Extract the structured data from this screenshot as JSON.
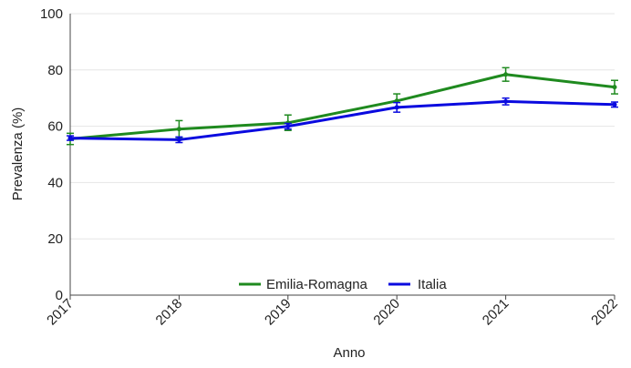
{
  "chart_data": {
    "type": "line",
    "xlabel": "Anno",
    "ylabel": "Prevalenza (%)",
    "categories": [
      "2017",
      "2018",
      "2019",
      "2020",
      "2021",
      "2022"
    ],
    "ylim": [
      0,
      100
    ],
    "yticks": [
      "0",
      "20",
      "40",
      "60",
      "80",
      "100"
    ],
    "grid": "horizontal",
    "legend_position": "bottom-center",
    "series": [
      {
        "name": "Emilia-Romagna",
        "color": "#1f8a1f",
        "values": [
          55.5,
          59.0,
          61.2,
          69.0,
          78.4,
          73.9
        ],
        "error_low": [
          53.5,
          56.0,
          58.5,
          66.5,
          76.0,
          71.5
        ],
        "error_high": [
          57.5,
          62.0,
          64.0,
          71.5,
          80.8,
          76.3
        ]
      },
      {
        "name": "Italia",
        "color": "#0a0adf",
        "values": [
          55.8,
          55.2,
          60.0,
          66.7,
          68.8,
          67.7
        ],
        "error_low": [
          55.0,
          54.2,
          59.0,
          65.0,
          67.6,
          66.8
        ],
        "error_high": [
          56.6,
          56.2,
          61.0,
          68.4,
          70.0,
          68.6
        ]
      }
    ]
  }
}
